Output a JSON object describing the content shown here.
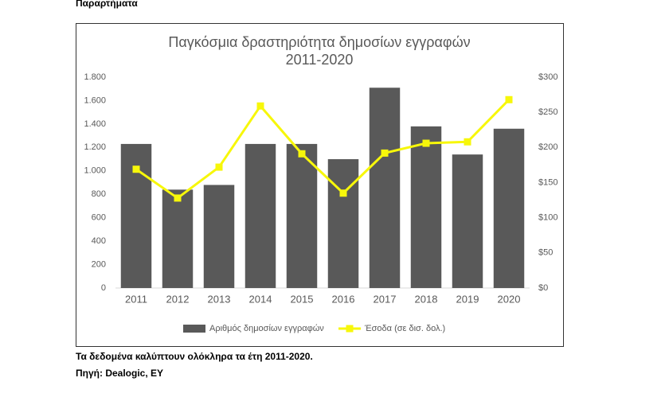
{
  "heading": "Παραρτήματα",
  "chart_data": {
    "type": "bar",
    "title": "Παγκόσμια δραστηριότητα δημοσίων εγγραφών",
    "subtitle": "2011-2020",
    "categories": [
      "2011",
      "2012",
      "2013",
      "2014",
      "2015",
      "2016",
      "2017",
      "2018",
      "2019",
      "2020"
    ],
    "series": [
      {
        "name": "Αριθμός δημοσίων εγγραφών",
        "type": "bar",
        "color": "#595959",
        "values": [
          1230,
          840,
          880,
          1230,
          1230,
          1100,
          1710,
          1380,
          1140,
          1360
        ]
      },
      {
        "name": "Έσοδα (σε δισ. δολ.)",
        "type": "line",
        "axis": "y2",
        "color": "#f7f70a",
        "values": [
          169,
          128,
          172,
          259,
          191,
          135,
          192,
          206,
          208,
          268
        ]
      }
    ],
    "ylim": [
      0,
      1800
    ],
    "yticks": [
      0,
      {
        "value": 200,
        "label": "200"
      },
      400,
      600,
      800,
      {
        "value": 1000,
        "label": "1.000"
      },
      {
        "value": 1200,
        "label": "1.200"
      },
      {
        "value": 1400,
        "label": "1.400"
      },
      {
        "value": 1600,
        "label": "1.600"
      },
      {
        "value": 1800,
        "label": "1.800"
      }
    ],
    "y2lim": [
      0,
      300
    ],
    "y2ticks": [
      {
        "value": 0,
        "label": "$0"
      },
      {
        "value": 50,
        "label": "$50"
      },
      {
        "value": 100,
        "label": "$100"
      },
      {
        "value": 150,
        "label": "$150"
      },
      {
        "value": 200,
        "label": "$200"
      },
      {
        "value": 250,
        "label": "$250"
      },
      {
        "value": 300,
        "label": "$300"
      }
    ],
    "legend": "bottom"
  },
  "notes": [
    "Τα δεδομένα καλύπτουν ολόκληρα τα έτη 2011-2020.",
    "Πηγή: Dealogic, EY"
  ]
}
